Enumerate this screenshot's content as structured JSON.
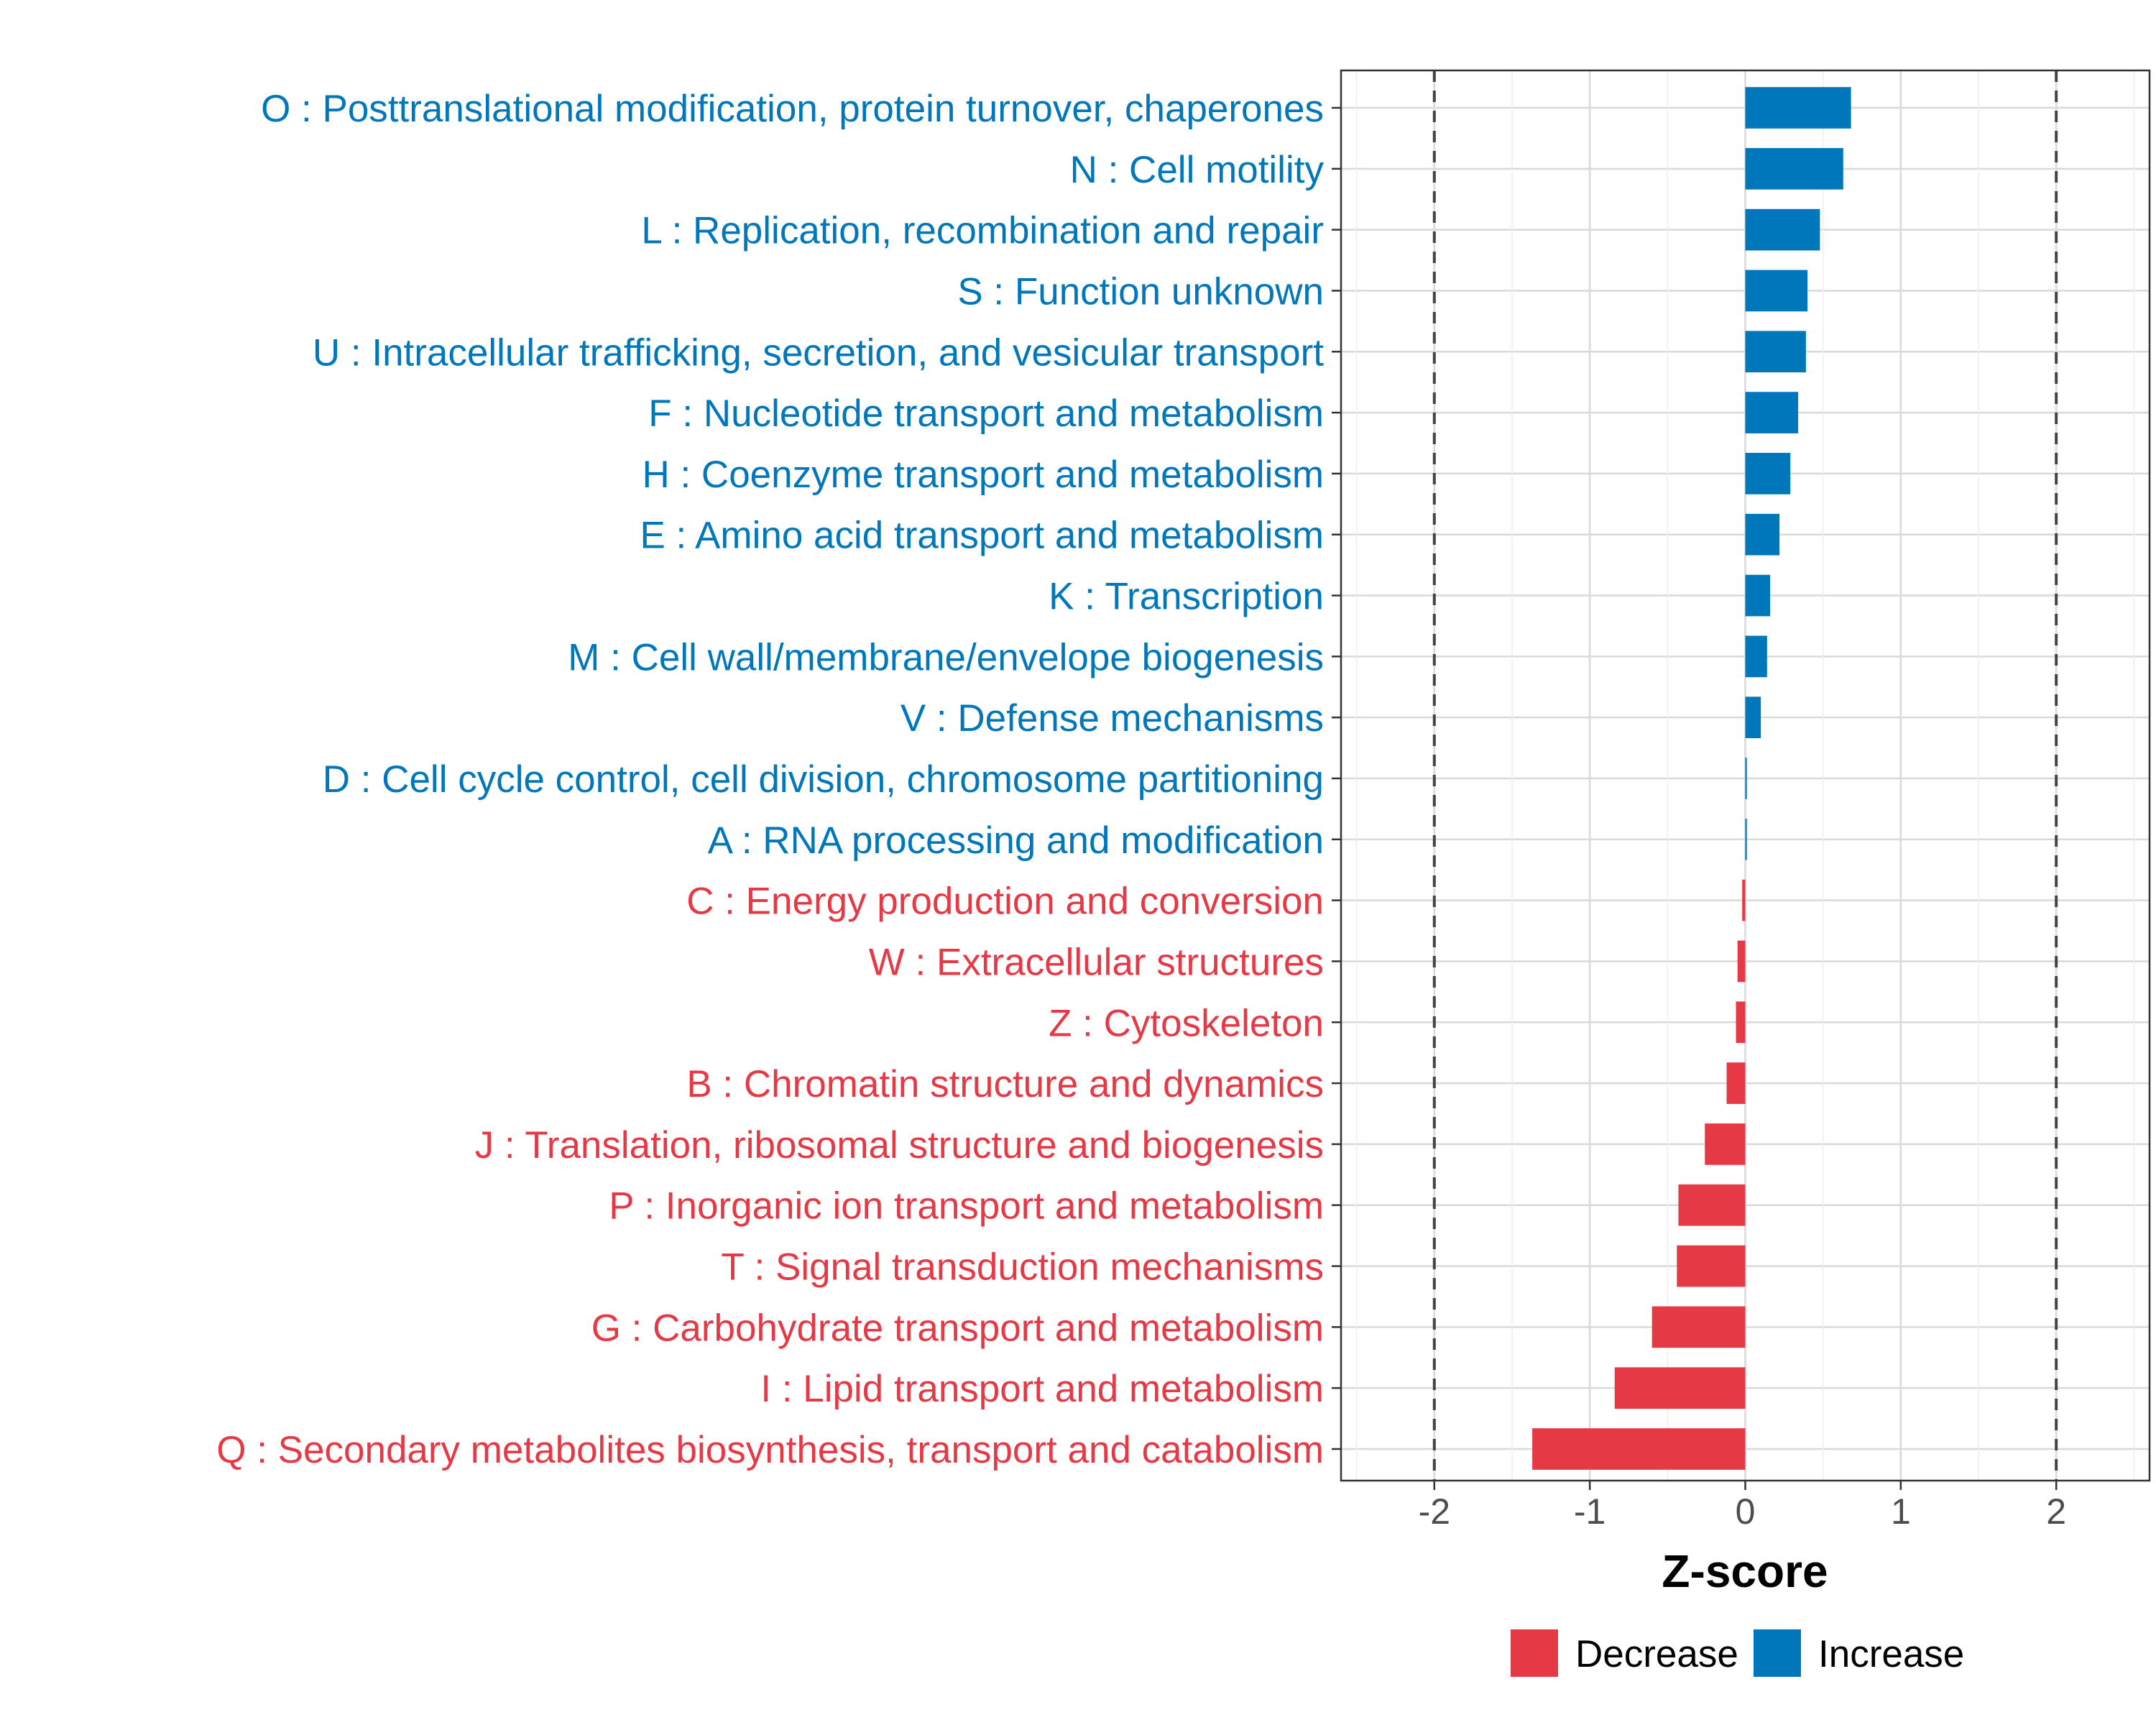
{
  "chart_data": {
    "type": "bar",
    "orientation": "horizontal",
    "xlabel": "Z-score",
    "ylabel": "",
    "xlim": [
      -2.6,
      2.6
    ],
    "xticks": [
      -2,
      -1,
      0,
      1,
      2
    ],
    "xtick_labels": [
      "-2",
      "-1",
      "0",
      "1",
      "2"
    ],
    "reference_lines": [
      -2,
      2
    ],
    "grid": true,
    "legend_position": "bottom",
    "colors": {
      "Decrease": "#e63946",
      "Increase": "#0077bb"
    },
    "legend": [
      {
        "name": "Decrease",
        "color": "#e63946"
      },
      {
        "name": "Increase",
        "color": "#0077bb"
      }
    ],
    "categories": [
      "O : Posttranslational modification, protein turnover, chaperones",
      "N : Cell motility",
      "L : Replication, recombination and repair",
      "S : Function unknown",
      "U : Intracellular trafficking, secretion, and vesicular transport",
      "F : Nucleotide transport and metabolism",
      "H : Coenzyme transport and metabolism",
      "E : Amino acid transport and metabolism",
      "K : Transcription",
      "M : Cell wall/membrane/envelope biogenesis",
      "V : Defense mechanisms",
      "D : Cell cycle control, cell division, chromosome partitioning",
      "A : RNA processing and modification",
      "C : Energy production and conversion",
      "W : Extracellular structures",
      "Z : Cytoskeleton",
      "B : Chromatin structure and dynamics",
      "J : Translation, ribosomal structure and biogenesis",
      "P : Inorganic ion transport and metabolism",
      "T : Signal transduction mechanisms",
      "G : Carbohydrate transport and metabolism",
      "I : Lipid transport and metabolism",
      "Q : Secondary metabolites biosynthesis, transport and catabolism"
    ],
    "values": [
      0.68,
      0.63,
      0.48,
      0.4,
      0.39,
      0.34,
      0.29,
      0.22,
      0.16,
      0.14,
      0.1,
      0.01,
      0.01,
      -0.02,
      -0.05,
      -0.06,
      -0.12,
      -0.26,
      -0.43,
      -0.44,
      -0.6,
      -0.84,
      -1.37
    ],
    "groups": [
      "Increase",
      "Increase",
      "Increase",
      "Increase",
      "Increase",
      "Increase",
      "Increase",
      "Increase",
      "Increase",
      "Increase",
      "Increase",
      "Increase",
      "Increase",
      "Decrease",
      "Decrease",
      "Decrease",
      "Decrease",
      "Decrease",
      "Decrease",
      "Decrease",
      "Decrease",
      "Decrease",
      "Decrease"
    ]
  }
}
